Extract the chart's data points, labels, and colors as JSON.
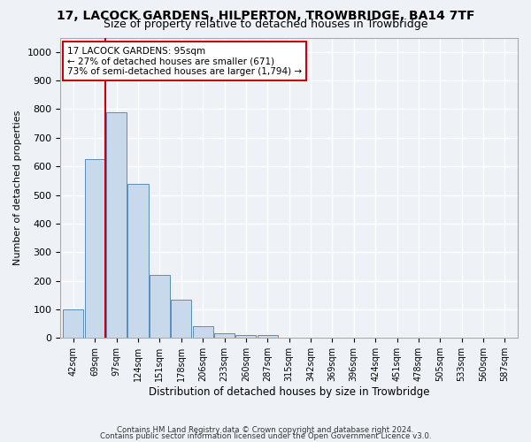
{
  "title1": "17, LACOCK GARDENS, HILPERTON, TROWBRIDGE, BA14 7TF",
  "title2": "Size of property relative to detached houses in Trowbridge",
  "xlabel": "Distribution of detached houses by size in Trowbridge",
  "ylabel": "Number of detached properties",
  "footer1": "Contains HM Land Registry data © Crown copyright and database right 2024.",
  "footer2": "Contains public sector information licensed under the Open Government Licence v3.0.",
  "annotation_line1": "17 LACOCK GARDENS: 95sqm",
  "annotation_line2": "← 27% of detached houses are smaller (671)",
  "annotation_line3": "73% of semi-detached houses are larger (1,794) →",
  "bar_color": "#c9d9ec",
  "bar_edge_color": "#5b8db8",
  "line_color": "#cc0000",
  "annotation_box_edge": "#cc0000",
  "background_color": "#eef2f7",
  "grid_color": "#ffffff",
  "bin_labels": [
    "42sqm",
    "69sqm",
    "97sqm",
    "124sqm",
    "151sqm",
    "178sqm",
    "206sqm",
    "233sqm",
    "260sqm",
    "287sqm",
    "315sqm",
    "342sqm",
    "369sqm",
    "396sqm",
    "424sqm",
    "451sqm",
    "478sqm",
    "505sqm",
    "533sqm",
    "560sqm",
    "587sqm"
  ],
  "bar_heights": [
    100,
    625,
    790,
    540,
    220,
    135,
    40,
    15,
    10,
    10,
    0,
    0,
    0,
    0,
    0,
    0,
    0,
    0,
    0,
    0,
    0
  ],
  "ylim": [
    0,
    1050
  ],
  "yticks": [
    0,
    100,
    200,
    300,
    400,
    500,
    600,
    700,
    800,
    900,
    1000
  ],
  "line_x_index": 1.5
}
